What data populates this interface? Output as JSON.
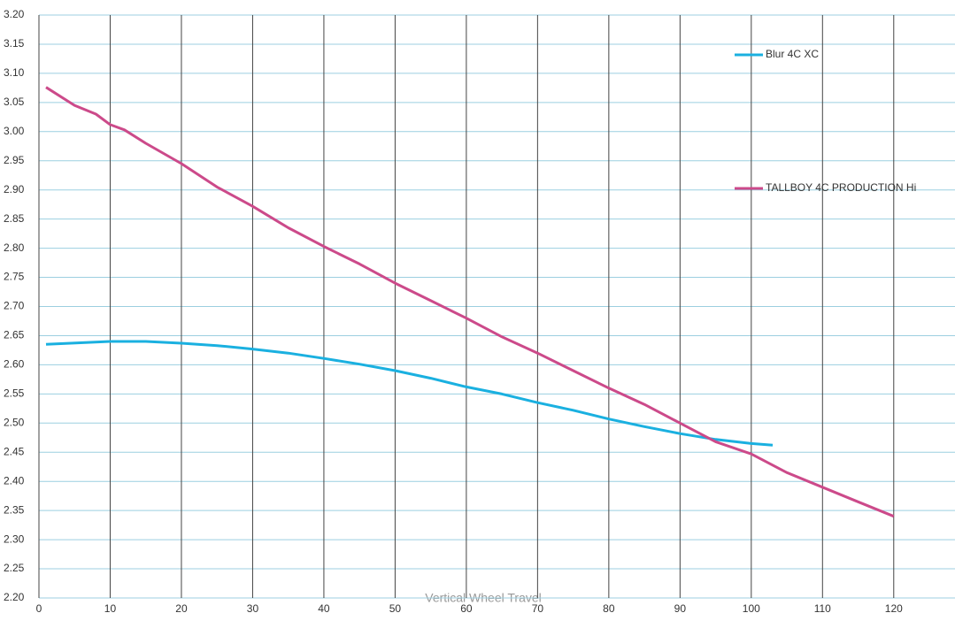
{
  "chart_data": {
    "type": "line",
    "x_label": "Vertical Wheel Travel",
    "xlim": [
      0,
      128.6
    ],
    "xticks": [
      0,
      10,
      20,
      30,
      40,
      50,
      60,
      70,
      80,
      90,
      100,
      110,
      120
    ],
    "ylim": [
      2.2,
      3.2
    ],
    "yticks": [
      {
        "value": 2.2,
        "label": "2.20"
      },
      {
        "value": 2.25,
        "label": "2.25"
      },
      {
        "value": 2.3,
        "label": "2.30"
      },
      {
        "value": 2.35,
        "label": "2.35"
      },
      {
        "value": 2.4,
        "label": "2.40"
      },
      {
        "value": 2.45,
        "label": "2.45"
      },
      {
        "value": 2.5,
        "label": "2.50"
      },
      {
        "value": 2.55,
        "label": "2.55"
      },
      {
        "value": 2.6,
        "label": "2.60"
      },
      {
        "value": 2.65,
        "label": "2.65"
      },
      {
        "value": 2.7,
        "label": "2.70"
      },
      {
        "value": 2.75,
        "label": "2.75"
      },
      {
        "value": 2.8,
        "label": "2.80"
      },
      {
        "value": 2.85,
        "label": "2.85"
      },
      {
        "value": 2.9,
        "label": "2.90"
      },
      {
        "value": 2.95,
        "label": "2.95"
      },
      {
        "value": 3.0,
        "label": "3.00"
      },
      {
        "value": 3.05,
        "label": "3.05"
      },
      {
        "value": 3.1,
        "label": "3.10"
      },
      {
        "value": 3.15,
        "label": "3.15"
      },
      {
        "value": 3.2,
        "label": "3.20"
      }
    ],
    "grid": true,
    "legend": "top-right",
    "series": [
      {
        "name": "Blur 4C XC",
        "color": "#1ab0e0",
        "x": [
          1,
          10,
          15,
          20,
          25,
          30,
          35,
          40,
          45,
          50,
          55,
          60,
          65,
          70,
          75,
          80,
          85,
          90,
          95,
          100,
          103
        ],
        "values": [
          2.635,
          2.64,
          2.64,
          2.637,
          2.633,
          2.627,
          2.62,
          2.611,
          2.601,
          2.59,
          2.577,
          2.562,
          2.55,
          2.535,
          2.522,
          2.507,
          2.494,
          2.482,
          2.472,
          2.465,
          2.462
        ]
      },
      {
        "name": "TALLBOY 4C PRODUCTION Hi",
        "color": "#cc4a8a",
        "x": [
          1,
          5,
          8,
          10,
          12,
          15,
          20,
          25,
          30,
          35,
          40,
          45,
          50,
          55,
          60,
          65,
          70,
          75,
          80,
          85,
          90,
          95,
          100,
          105,
          110,
          115,
          120
        ],
        "values": [
          3.076,
          3.045,
          3.03,
          3.012,
          3.003,
          2.98,
          2.945,
          2.905,
          2.872,
          2.835,
          2.803,
          2.773,
          2.74,
          2.71,
          2.68,
          2.648,
          2.62,
          2.59,
          2.56,
          2.532,
          2.5,
          2.468,
          2.447,
          2.415,
          2.39,
          2.365,
          2.34
        ]
      }
    ]
  }
}
